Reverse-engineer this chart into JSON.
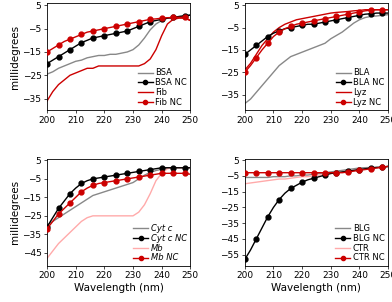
{
  "panels": [
    {
      "name": "top-left",
      "ylim": [
        -40,
        6
      ],
      "yticks": [
        -35,
        -25,
        -15,
        -5,
        5
      ],
      "legends": [
        "BSA",
        "BSA NC",
        "Fib",
        "Fib NC"
      ],
      "line_colors": [
        "#888888",
        "#000000",
        "#cc0000",
        "#cc0000"
      ],
      "markers": [
        "",
        "o",
        "",
        "o"
      ],
      "italic": [
        false,
        false,
        false,
        false
      ],
      "series": [
        {
          "x": [
            200,
            202,
            204,
            206,
            208,
            210,
            212,
            214,
            216,
            218,
            220,
            222,
            224,
            226,
            228,
            230,
            232,
            234,
            236,
            238,
            240,
            242,
            244,
            246,
            248,
            250
          ],
          "y": [
            -24.5,
            -23.5,
            -22,
            -21,
            -20,
            -19,
            -18.5,
            -17.5,
            -17,
            -16.5,
            -16.5,
            -16,
            -16,
            -15.5,
            -15,
            -14,
            -12,
            -9,
            -5.5,
            -3,
            -1.5,
            -0.5,
            -0.2,
            0.2,
            0.5,
            1.0
          ]
        },
        {
          "x": [
            200,
            202,
            204,
            206,
            208,
            210,
            212,
            214,
            216,
            218,
            220,
            222,
            224,
            226,
            228,
            230,
            232,
            234,
            236,
            238,
            240,
            242,
            244,
            246,
            248,
            250
          ],
          "y": [
            -20,
            -18.5,
            -17,
            -15.5,
            -14,
            -12.5,
            -11,
            -10,
            -9,
            -8.5,
            -8,
            -7.5,
            -7,
            -6.5,
            -6,
            -5,
            -4,
            -3,
            -2,
            -1.5,
            -1,
            -0.5,
            -0.2,
            0.2,
            0.5,
            0.8
          ]
        },
        {
          "x": [
            200,
            202,
            204,
            206,
            208,
            210,
            212,
            214,
            216,
            218,
            220,
            222,
            224,
            226,
            228,
            230,
            232,
            234,
            236,
            238,
            240,
            242,
            244,
            246,
            248,
            250
          ],
          "y": [
            -36,
            -32,
            -29,
            -27,
            -25,
            -24,
            -23,
            -22,
            -22,
            -21,
            -21,
            -21,
            -21,
            -21,
            -21,
            -21,
            -21,
            -20,
            -18,
            -14,
            -8,
            -3,
            -1,
            -0.5,
            -0.5,
            -1.5
          ]
        },
        {
          "x": [
            200,
            202,
            204,
            206,
            208,
            210,
            212,
            214,
            216,
            218,
            220,
            222,
            224,
            226,
            228,
            230,
            232,
            234,
            236,
            238,
            240,
            242,
            244,
            246,
            248,
            250
          ],
          "y": [
            -15,
            -13.5,
            -12,
            -10.5,
            -9.5,
            -8.5,
            -7.5,
            -6.5,
            -6,
            -5.5,
            -5,
            -4.5,
            -4,
            -3.5,
            -3,
            -2.5,
            -2,
            -1.5,
            -1,
            -0.8,
            -0.5,
            -0.3,
            -0.2,
            -0.1,
            -0.1,
            -1.5
          ]
        }
      ]
    },
    {
      "name": "top-right",
      "ylim": [
        -42,
        6
      ],
      "yticks": [
        -35,
        -25,
        -15,
        -5,
        5
      ],
      "legends": [
        "BLA",
        "BLA NC",
        "Lyz",
        "Lyz NC"
      ],
      "line_colors": [
        "#888888",
        "#000000",
        "#cc0000",
        "#cc0000"
      ],
      "markers": [
        "",
        "o",
        "",
        "o"
      ],
      "italic": [
        false,
        false,
        false,
        false
      ],
      "series": [
        {
          "x": [
            200,
            202,
            204,
            206,
            208,
            210,
            212,
            214,
            216,
            218,
            220,
            222,
            224,
            226,
            228,
            230,
            232,
            234,
            236,
            238,
            240,
            242,
            244,
            246,
            248,
            250
          ],
          "y": [
            -39,
            -37,
            -34,
            -31,
            -28,
            -25,
            -22,
            -20,
            -18,
            -17,
            -16,
            -15,
            -14,
            -13,
            -12,
            -10,
            -8.5,
            -7,
            -5,
            -3,
            -1.5,
            -0.5,
            0,
            0.2,
            0.5,
            0.8
          ]
        },
        {
          "x": [
            200,
            202,
            204,
            206,
            208,
            210,
            212,
            214,
            216,
            218,
            220,
            222,
            224,
            226,
            228,
            230,
            232,
            234,
            236,
            238,
            240,
            242,
            244,
            246,
            248,
            250
          ],
          "y": [
            -17,
            -15,
            -13,
            -11,
            -9,
            -7.5,
            -6.5,
            -5.5,
            -5,
            -4.5,
            -4,
            -3.5,
            -3.5,
            -3,
            -2.5,
            -2,
            -1.5,
            -1,
            -0.5,
            0,
            0.5,
            1,
            1.2,
            1.5,
            1.5,
            1.5
          ]
        },
        {
          "x": [
            200,
            202,
            204,
            206,
            208,
            210,
            212,
            214,
            216,
            218,
            220,
            222,
            224,
            226,
            228,
            230,
            232,
            234,
            236,
            238,
            240,
            242,
            244,
            246,
            248,
            250
          ],
          "y": [
            -24,
            -21,
            -17,
            -13,
            -10,
            -7,
            -5,
            -3.5,
            -2.5,
            -1.5,
            -1,
            -0.5,
            0,
            0.5,
            1,
            1.5,
            1.8,
            2,
            2.2,
            2.5,
            2.7,
            3,
            3,
            3,
            3,
            3
          ]
        },
        {
          "x": [
            200,
            202,
            204,
            206,
            208,
            210,
            212,
            214,
            216,
            218,
            220,
            222,
            224,
            226,
            228,
            230,
            232,
            234,
            236,
            238,
            240,
            242,
            244,
            246,
            248,
            250
          ],
          "y": [
            -25,
            -22,
            -18.5,
            -15,
            -12,
            -9,
            -7,
            -5.5,
            -4.5,
            -3.5,
            -3,
            -2.5,
            -2,
            -1.5,
            -1,
            -0.5,
            0,
            0.5,
            1,
            1.5,
            2,
            2.5,
            2.8,
            3,
            3,
            3
          ]
        }
      ]
    },
    {
      "name": "bottom-left",
      "ylim": [
        -52,
        6
      ],
      "yticks": [
        -45,
        -35,
        -25,
        -15,
        -5,
        5
      ],
      "legends": [
        "Cyt c",
        "Cyt c NC",
        "Mb",
        "Mb NC"
      ],
      "line_colors": [
        "#888888",
        "#000000",
        "#ffaaaa",
        "#cc0000"
      ],
      "markers": [
        "",
        "o",
        "",
        "o"
      ],
      "italic": [
        true,
        true,
        true,
        true
      ],
      "series": [
        {
          "x": [
            200,
            202,
            204,
            206,
            208,
            210,
            212,
            214,
            216,
            218,
            220,
            222,
            224,
            226,
            228,
            230,
            232,
            234,
            236,
            238,
            240,
            242,
            244,
            246,
            248,
            250
          ],
          "y": [
            -30,
            -28,
            -26,
            -24,
            -22,
            -20,
            -18,
            -16,
            -14,
            -13,
            -12,
            -11,
            -10,
            -9,
            -8,
            -7,
            -5,
            -3,
            -1.5,
            -0.5,
            0.2,
            0.8,
            1,
            1,
            1,
            1
          ]
        },
        {
          "x": [
            200,
            202,
            204,
            206,
            208,
            210,
            212,
            214,
            216,
            218,
            220,
            222,
            224,
            226,
            228,
            230,
            232,
            234,
            236,
            238,
            240,
            242,
            244,
            246,
            248,
            250
          ],
          "y": [
            -31,
            -26,
            -21,
            -17,
            -13,
            -10,
            -7.5,
            -6,
            -5,
            -4.5,
            -4,
            -3.5,
            -3,
            -2.5,
            -2,
            -1.5,
            -1,
            -0.5,
            0,
            0.5,
            1,
            1,
            1,
            1,
            1,
            1
          ]
        },
        {
          "x": [
            200,
            202,
            204,
            206,
            208,
            210,
            212,
            214,
            216,
            218,
            220,
            222,
            224,
            226,
            228,
            230,
            232,
            234,
            236,
            238,
            240,
            242,
            244,
            246,
            248,
            250
          ],
          "y": [
            -48,
            -44,
            -40,
            -37,
            -34,
            -31,
            -28,
            -26,
            -25,
            -25,
            -25,
            -25,
            -25,
            -25,
            -25,
            -25,
            -23,
            -19,
            -13,
            -6,
            -2,
            0.5,
            1,
            1,
            1,
            1
          ]
        },
        {
          "x": [
            200,
            202,
            204,
            206,
            208,
            210,
            212,
            214,
            216,
            218,
            220,
            222,
            224,
            226,
            228,
            230,
            232,
            234,
            236,
            238,
            240,
            242,
            244,
            246,
            248,
            250
          ],
          "y": [
            -32,
            -28,
            -24,
            -21,
            -18,
            -15,
            -12,
            -10,
            -8.5,
            -7.5,
            -7,
            -6.5,
            -6,
            -5.5,
            -5,
            -4.5,
            -4,
            -3.5,
            -3,
            -2.5,
            -2,
            -2,
            -2,
            -2,
            -2,
            -2.5
          ]
        }
      ]
    },
    {
      "name": "bottom-right",
      "ylim": [
        -62,
        6
      ],
      "yticks": [
        -55,
        -45,
        -35,
        -25,
        -15,
        -5,
        5
      ],
      "legends": [
        "BLG",
        "BLG NC",
        "CTR",
        "CTR NC"
      ],
      "line_colors": [
        "#888888",
        "#000000",
        "#ffaaaa",
        "#cc0000"
      ],
      "markers": [
        "",
        "o",
        "",
        "o"
      ],
      "italic": [
        false,
        false,
        false,
        false
      ],
      "series": [
        {
          "x": [
            200,
            202,
            204,
            206,
            208,
            210,
            212,
            214,
            216,
            218,
            220,
            222,
            224,
            226,
            228,
            230,
            232,
            234,
            236,
            238,
            240,
            242,
            244,
            246,
            248,
            250
          ],
          "y": [
            -6,
            -6,
            -6,
            -6,
            -6,
            -5.5,
            -5.5,
            -5.5,
            -5,
            -5,
            -4.5,
            -4.5,
            -4,
            -3.5,
            -3,
            -2.5,
            -2,
            -1.5,
            -1,
            -0.5,
            0,
            0.2,
            0.3,
            0.5,
            0.5,
            1
          ]
        },
        {
          "x": [
            200,
            202,
            204,
            206,
            208,
            210,
            212,
            214,
            216,
            218,
            220,
            222,
            224,
            226,
            228,
            230,
            232,
            234,
            236,
            238,
            240,
            242,
            244,
            246,
            248,
            250
          ],
          "y": [
            -58,
            -52,
            -45,
            -38,
            -31,
            -25,
            -20,
            -16,
            -13,
            -11,
            -9,
            -7.5,
            -6.5,
            -5.5,
            -4.5,
            -3.5,
            -3,
            -2.5,
            -2,
            -1.5,
            -1,
            -0.5,
            0,
            0.3,
            0.5,
            1
          ]
        },
        {
          "x": [
            200,
            202,
            204,
            206,
            208,
            210,
            212,
            214,
            216,
            218,
            220,
            222,
            224,
            226,
            228,
            230,
            232,
            234,
            236,
            238,
            240,
            242,
            244,
            246,
            248,
            250
          ],
          "y": [
            -10,
            -9.5,
            -9,
            -8.5,
            -8,
            -7.5,
            -7,
            -7,
            -6.5,
            -6,
            -5.5,
            -5.5,
            -5,
            -4.5,
            -4,
            -3.5,
            -3,
            -2.5,
            -2,
            -1.5,
            -1,
            -0.5,
            0,
            0.2,
            0.5,
            1
          ]
        },
        {
          "x": [
            200,
            202,
            204,
            206,
            208,
            210,
            212,
            214,
            216,
            218,
            220,
            222,
            224,
            226,
            228,
            230,
            232,
            234,
            236,
            238,
            240,
            242,
            244,
            246,
            248,
            250
          ],
          "y": [
            -3,
            -3,
            -3,
            -3,
            -3,
            -3,
            -3,
            -3,
            -3,
            -3,
            -3,
            -3,
            -3,
            -3,
            -3,
            -3,
            -3,
            -3,
            -2.5,
            -2,
            -1.5,
            -1,
            -0.5,
            0,
            0.5,
            1
          ]
        }
      ]
    }
  ],
  "xlabel": "Wavelength (nm)",
  "ylabel": "millidegrees",
  "xticks": [
    200,
    210,
    220,
    230,
    240,
    250
  ],
  "background_color": "#ffffff",
  "legend_fontsize": 6.0,
  "tick_fontsize": 6.5,
  "label_fontsize": 7.5
}
